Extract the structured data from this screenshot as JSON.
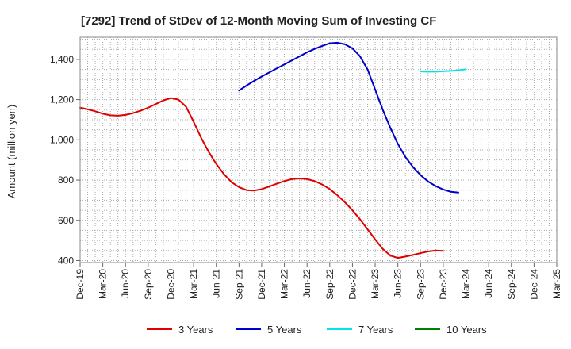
{
  "chart_data": {
    "type": "line",
    "title": "[7292]  Trend of StDev of 12-Month Moving Sum of Investing CF",
    "ylabel": "Amount (million yen)",
    "xlabel": "",
    "ylim": [
      390,
      1510
    ],
    "yticks": [
      400,
      600,
      800,
      1000,
      1200,
      1400
    ],
    "ytick_labels": [
      "400",
      "600",
      "800",
      "1,000",
      "1,200",
      "1,400"
    ],
    "x_start": "Dec-19",
    "x_end": "Mar-25",
    "xtick_labels": [
      "Dec-19",
      "Mar-20",
      "Jun-20",
      "Sep-20",
      "Dec-20",
      "Mar-21",
      "Jun-21",
      "Sep-21",
      "Dec-21",
      "Mar-22",
      "Jun-22",
      "Sep-22",
      "Dec-22",
      "Mar-23",
      "Jun-23",
      "Sep-23",
      "Dec-23",
      "Mar-24",
      "Jun-24",
      "Sep-24",
      "Dec-24",
      "Mar-25"
    ],
    "grid": true,
    "legend_position": "bottom",
    "series": [
      {
        "name": "3 Years",
        "color": "#e00000",
        "start": "Dec-19",
        "values": [
          1160,
          1152,
          1142,
          1130,
          1122,
          1120,
          1124,
          1133,
          1145,
          1160,
          1178,
          1196,
          1208,
          1200,
          1165,
          1090,
          1010,
          940,
          880,
          830,
          790,
          765,
          750,
          748,
          755,
          768,
          782,
          795,
          805,
          808,
          805,
          795,
          778,
          755,
          725,
          690,
          650,
          605,
          555,
          505,
          458,
          425,
          413,
          420,
          428,
          437,
          445,
          450,
          448
        ]
      },
      {
        "name": "5 Years",
        "color": "#0000cc",
        "start": "Sep-21",
        "values": [
          1245,
          1270,
          1293,
          1315,
          1335,
          1355,
          1375,
          1395,
          1415,
          1435,
          1452,
          1467,
          1480,
          1483,
          1475,
          1455,
          1415,
          1350,
          1250,
          1150,
          1060,
          980,
          915,
          865,
          825,
          793,
          770,
          753,
          742,
          738
        ]
      },
      {
        "name": "7 Years",
        "color": "#00e5e5",
        "start": "Sep-23",
        "values": [
          1340,
          1339,
          1339,
          1341,
          1343,
          1346,
          1351
        ]
      },
      {
        "name": "10 Years",
        "color": "#008000",
        "start": "",
        "values": []
      }
    ]
  }
}
